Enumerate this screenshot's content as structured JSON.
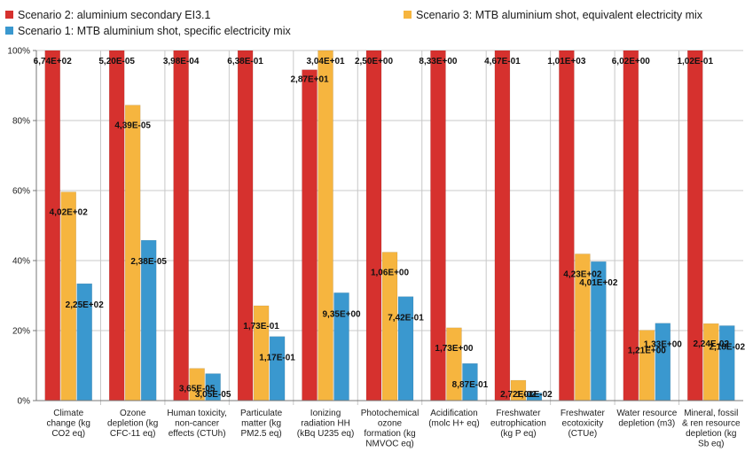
{
  "chart_data": {
    "type": "bar",
    "title": "",
    "xlabel": "",
    "ylabel": "",
    "ylim": [
      0,
      100
    ],
    "y_ticks": [
      "0%",
      "20%",
      "40%",
      "60%",
      "80%",
      "100%"
    ],
    "grid": true,
    "legend_position": "top",
    "categories": [
      [
        "Climate",
        "change (kg",
        "CO2 eq)"
      ],
      [
        "Ozone",
        "depletion (kg",
        "CFC-11 eq)"
      ],
      [
        "Human toxicity,",
        "non-cancer",
        "effects (CTUh)"
      ],
      [
        "Particulate",
        "matter (kg",
        "PM2.5 eq)"
      ],
      [
        "Ionizing",
        "radiation HH",
        "(kBq U235 eq)"
      ],
      [
        "Photochemical",
        "ozone",
        "formation (kg",
        "NMVOC eq)"
      ],
      [
        "Acidification",
        "(molc H+ eq)"
      ],
      [
        "Freshwater",
        "eutrophication",
        "(kg P eq)"
      ],
      [
        "Freshwater",
        "ecotoxicity",
        "(CTUe)"
      ],
      [
        "Water resource",
        "depletion (m3)"
      ],
      [
        "Mineral, fossil",
        "& ren resource",
        "depletion (kg",
        "Sb eq)"
      ]
    ],
    "series": [
      {
        "name": "Scenario 2: aluminium secondary EI3.1",
        "color": "#d6312e",
        "values": [
          100,
          100,
          100,
          100,
          94.5,
          100,
          100,
          100,
          100,
          100,
          100
        ],
        "labels": [
          "6,74E+02",
          "5,20E-05",
          "3,98E-04",
          "6,38E-01",
          "2,87E+01",
          "2,50E+00",
          "8,33E+00",
          "4,67E-01",
          "1,01E+03",
          "6,02E+00",
          "1,02E-01"
        ]
      },
      {
        "name": "Scenario 3: MTB aluminium shot, equivalent electricity mix",
        "color": "#f6b53f",
        "values": [
          59.6,
          84.4,
          9.2,
          27.1,
          100,
          42.4,
          20.8,
          5.8,
          41.9,
          20.1,
          22.0
        ],
        "labels": [
          "4,02E+02",
          "4,39E-05",
          "3,65E-05",
          "1,73E-01",
          "3,04E+01",
          "1,06E+00",
          "1,73E+00",
          "2,72E-02",
          "4,23E+02",
          "1,21E+00",
          "2,24E-02"
        ]
      },
      {
        "name": "Scenario 1: MTB aluminium shot, specific electricity mix",
        "color": "#3a98cf",
        "values": [
          33.4,
          45.8,
          7.7,
          18.3,
          30.8,
          29.7,
          10.6,
          2.2,
          39.7,
          22.1,
          21.4
        ],
        "labels": [
          "2,25E+02",
          "2,38E-05",
          "3,05E-05",
          "1,17E-01",
          "9,35E+00",
          "7,42E-01",
          "8,87E-01",
          "1,01E-02",
          "4,01E+02",
          "1,33E+00",
          "2,18E-02"
        ]
      }
    ]
  }
}
